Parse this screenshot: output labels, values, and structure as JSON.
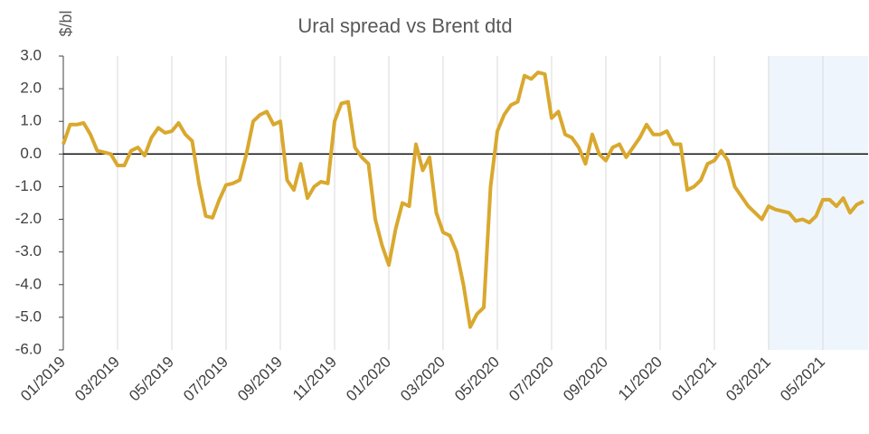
{
  "chart_data": {
    "type": "line",
    "title": "Ural spread vs Brent dtd",
    "y_label": "$/bl",
    "categories": [
      "01/2019",
      null,
      null,
      null,
      null,
      null,
      null,
      null,
      "03/2019",
      null,
      null,
      null,
      null,
      null,
      null,
      null,
      "05/2019",
      null,
      null,
      null,
      null,
      null,
      null,
      null,
      "07/2019",
      null,
      null,
      null,
      null,
      null,
      null,
      null,
      "09/2019",
      null,
      null,
      null,
      null,
      null,
      null,
      null,
      "11/2019",
      null,
      null,
      null,
      null,
      null,
      null,
      null,
      "01/2020",
      null,
      null,
      null,
      null,
      null,
      null,
      null,
      "03/2020",
      null,
      null,
      null,
      null,
      null,
      null,
      null,
      "05/2020",
      null,
      null,
      null,
      null,
      null,
      null,
      null,
      "07/2020",
      null,
      null,
      null,
      null,
      null,
      null,
      null,
      "09/2020",
      null,
      null,
      null,
      null,
      null,
      null,
      null,
      "11/2020",
      null,
      null,
      null,
      null,
      null,
      null,
      null,
      "01/2021",
      null,
      null,
      null,
      null,
      null,
      null,
      null,
      "03/2021",
      null,
      null,
      null,
      null,
      null,
      null,
      null,
      "05/2021",
      null,
      null,
      null,
      null,
      null,
      null
    ],
    "series": [
      {
        "name": "Ural spread",
        "color": "#d9a82e",
        "values": [
          0.3,
          0.9,
          0.9,
          0.95,
          0.6,
          0.1,
          0.05,
          0.0,
          -0.35,
          -0.35,
          0.1,
          0.2,
          -0.05,
          0.5,
          0.8,
          0.65,
          0.7,
          0.95,
          0.6,
          0.4,
          -0.9,
          -1.9,
          -1.95,
          -1.4,
          -0.95,
          -0.9,
          -0.8,
          0.0,
          1.0,
          1.2,
          1.3,
          0.9,
          1.0,
          -0.8,
          -1.1,
          -0.3,
          -1.35,
          -1.0,
          -0.85,
          -0.9,
          1.0,
          1.55,
          1.6,
          0.2,
          -0.1,
          -0.3,
          -2.0,
          -2.8,
          -3.4,
          -2.3,
          -1.5,
          -1.6,
          0.3,
          -0.5,
          -0.1,
          -1.8,
          -2.4,
          -2.5,
          -3.0,
          -4.0,
          -5.3,
          -4.9,
          -4.7,
          -1.0,
          0.7,
          1.2,
          1.5,
          1.6,
          2.4,
          2.3,
          2.5,
          2.45,
          1.1,
          1.3,
          0.6,
          0.5,
          0.2,
          -0.3,
          0.6,
          0.0,
          -0.2,
          0.2,
          0.3,
          -0.1,
          0.2,
          0.5,
          0.9,
          0.6,
          0.6,
          0.7,
          0.3,
          0.3,
          -1.1,
          -1.0,
          -0.8,
          -0.3,
          -0.2,
          0.1,
          -0.2,
          -1.0,
          -1.3,
          -1.6,
          -1.8,
          -2.0,
          -1.6,
          -1.7,
          -1.75,
          -1.8,
          -2.05,
          -2.0,
          -2.1,
          -1.9,
          -1.4,
          -1.4,
          -1.6,
          -1.35,
          -1.8,
          -1.55,
          -1.45
        ]
      }
    ],
    "ylim": [
      -6,
      3
    ],
    "yticks": [
      {
        "value": -6,
        "label": "-6.0"
      },
      {
        "value": -5,
        "label": "-5.0"
      },
      {
        "value": -4,
        "label": "-4.0"
      },
      {
        "value": -3,
        "label": "-3.0"
      },
      {
        "value": -2,
        "label": "-2.0"
      },
      {
        "value": -1,
        "label": "-1.0"
      },
      {
        "value": 0,
        "label": "0.0"
      },
      {
        "value": 1,
        "label": "1.0"
      },
      {
        "value": 2,
        "label": "2.0"
      },
      {
        "value": 3,
        "label": "3.0"
      }
    ],
    "shaded_from": "03/2021",
    "shade_color": "#eef5fd",
    "grid": true
  }
}
